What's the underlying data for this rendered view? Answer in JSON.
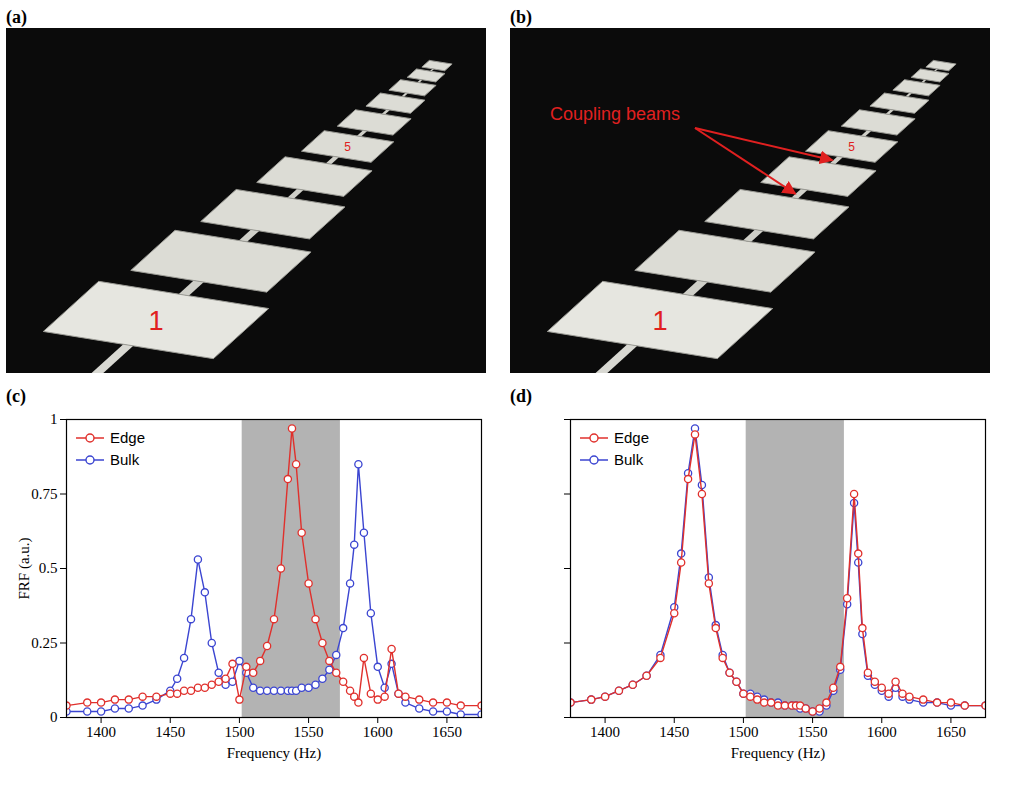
{
  "photos": [
    {
      "panel": "(a)",
      "plate_labels": [
        "1",
        "5"
      ]
    },
    {
      "panel": "(b)",
      "plate_labels": [
        "1",
        "5"
      ],
      "annotation": "Coupling beams"
    }
  ],
  "chart_data": [
    {
      "panel": "(c)",
      "type": "line",
      "x": [
        1375,
        1390,
        1400,
        1410,
        1420,
        1430,
        1440,
        1450,
        1455,
        1460,
        1465,
        1470,
        1475,
        1480,
        1485,
        1490,
        1495,
        1500,
        1505,
        1510,
        1515,
        1520,
        1525,
        1530,
        1535,
        1538,
        1541,
        1545,
        1550,
        1555,
        1560,
        1565,
        1570,
        1575,
        1580,
        1583,
        1586,
        1590,
        1595,
        1600,
        1605,
        1610,
        1615,
        1620,
        1630,
        1640,
        1650,
        1660,
        1675
      ],
      "series": [
        {
          "name": "Edge",
          "color": "#e0302c",
          "marker": "circle_open",
          "line_style": "solid",
          "values": [
            0.04,
            0.05,
            0.05,
            0.06,
            0.06,
            0.07,
            0.07,
            0.08,
            0.08,
            0.09,
            0.09,
            0.1,
            0.1,
            0.11,
            0.12,
            0.13,
            0.18,
            0.06,
            0.17,
            0.15,
            0.19,
            0.24,
            0.33,
            0.5,
            0.8,
            0.97,
            0.85,
            0.62,
            0.45,
            0.33,
            0.25,
            0.19,
            0.15,
            0.12,
            0.09,
            0.07,
            0.05,
            0.2,
            0.08,
            0.06,
            0.07,
            0.23,
            0.08,
            0.07,
            0.06,
            0.05,
            0.05,
            0.04,
            0.04
          ]
        },
        {
          "name": "Bulk",
          "color": "#3b45d1",
          "marker": "circle_open",
          "line_style": "solid",
          "values": [
            0.02,
            0.02,
            0.02,
            0.03,
            0.03,
            0.04,
            0.06,
            0.09,
            0.13,
            0.2,
            0.33,
            0.53,
            0.42,
            0.25,
            0.15,
            0.11,
            0.12,
            0.19,
            0.15,
            0.1,
            0.09,
            0.09,
            0.09,
            0.09,
            0.09,
            0.09,
            0.09,
            0.1,
            0.1,
            0.11,
            0.13,
            0.16,
            0.21,
            0.3,
            0.45,
            0.58,
            0.85,
            0.62,
            0.35,
            0.17,
            0.1,
            0.18,
            0.08,
            0.05,
            0.03,
            0.02,
            0.02,
            0.01,
            0.01
          ]
        }
      ],
      "xlim": [
        1375,
        1675
      ],
      "xticks": [
        1400,
        1450,
        1500,
        1550,
        1600,
        1650
      ],
      "ylim": [
        0,
        1
      ],
      "yticks": [
        0,
        0.25,
        0.5,
        0.75,
        1
      ],
      "x_label": "Frequency (Hz)",
      "y_label": "FRF (a.u.)",
      "shaded": [
        1502,
        1573
      ],
      "legend": "top-left",
      "grid": false
    },
    {
      "panel": "(d)",
      "type": "line",
      "x": [
        1375,
        1390,
        1400,
        1410,
        1420,
        1430,
        1440,
        1450,
        1455,
        1460,
        1465,
        1470,
        1475,
        1480,
        1485,
        1490,
        1495,
        1500,
        1505,
        1510,
        1515,
        1520,
        1525,
        1530,
        1535,
        1538,
        1541,
        1545,
        1550,
        1555,
        1560,
        1565,
        1570,
        1575,
        1580,
        1583,
        1586,
        1590,
        1595,
        1600,
        1605,
        1610,
        1615,
        1620,
        1630,
        1640,
        1650,
        1660,
        1675
      ],
      "series": [
        {
          "name": "Edge",
          "color": "#e0302c",
          "marker": "circle_open",
          "line_style": "solid",
          "values": [
            0.05,
            0.06,
            0.07,
            0.09,
            0.11,
            0.14,
            0.2,
            0.35,
            0.52,
            0.8,
            0.95,
            0.75,
            0.45,
            0.3,
            0.2,
            0.15,
            0.12,
            0.08,
            0.07,
            0.06,
            0.05,
            0.05,
            0.04,
            0.04,
            0.04,
            0.04,
            0.04,
            0.03,
            0.02,
            0.03,
            0.05,
            0.1,
            0.17,
            0.4,
            0.75,
            0.55,
            0.3,
            0.15,
            0.12,
            0.1,
            0.08,
            0.12,
            0.08,
            0.07,
            0.06,
            0.05,
            0.05,
            0.04,
            0.04
          ]
        },
        {
          "name": "Bulk",
          "color": "#3b45d1",
          "marker": "circle_open",
          "line_style": "solid",
          "values": [
            0.05,
            0.06,
            0.07,
            0.09,
            0.11,
            0.14,
            0.21,
            0.37,
            0.55,
            0.82,
            0.97,
            0.78,
            0.47,
            0.31,
            0.21,
            0.15,
            0.12,
            0.08,
            0.08,
            0.07,
            0.06,
            0.05,
            0.05,
            0.04,
            0.04,
            0.04,
            0.03,
            0.03,
            0.02,
            0.02,
            0.04,
            0.09,
            0.16,
            0.38,
            0.72,
            0.52,
            0.28,
            0.14,
            0.11,
            0.09,
            0.07,
            0.1,
            0.07,
            0.06,
            0.05,
            0.05,
            0.04,
            0.04,
            0.04
          ]
        }
      ],
      "xlim": [
        1375,
        1675
      ],
      "xticks": [
        1400,
        1450,
        1500,
        1550,
        1600,
        1650
      ],
      "ylim": [
        0,
        1
      ],
      "yticks": [
        0,
        0.25,
        0.5,
        0.75,
        1
      ],
      "x_label": "Frequency (Hz)",
      "tick_labels": "x",
      "shaded": [
        1502,
        1573
      ],
      "legend": "top-left",
      "grid": false
    }
  ]
}
